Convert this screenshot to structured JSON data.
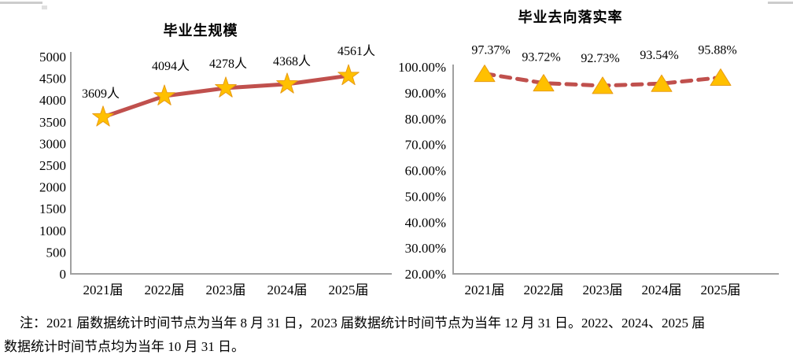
{
  "page": {
    "background": "#ffffff",
    "text_color": "#000000"
  },
  "footnote": {
    "lines": [
      "注：2021 届数据统计时间节点为当年 8 月 31 日，2023 届数据统计时间节点为当年 12 月 31 日。2022、2024、2025 届",
      "数据统计时间节点均为当年 10 月 31 日。"
    ]
  },
  "chart_data": [
    {
      "type": "line",
      "title": "毕业生规模",
      "categories": [
        "2021届",
        "2022届",
        "2023届",
        "2024届",
        "2025届"
      ],
      "values": [
        3609,
        4094,
        4278,
        4368,
        4561
      ],
      "data_labels": [
        "3609人",
        "4094人",
        "4278人",
        "4368人",
        "4561人"
      ],
      "xlabel": "",
      "ylabel": "",
      "ylim": [
        0,
        5000
      ],
      "ytick_step": 500,
      "ytick_labels": [
        "0",
        "500",
        "1000",
        "1500",
        "2000",
        "2500",
        "3000",
        "3500",
        "4000",
        "4500",
        "5000"
      ],
      "grid": false,
      "legend": "none",
      "line_style": "solid",
      "marker": "star",
      "colors": {
        "line": "#C0504D",
        "marker_fill": "#FFC000",
        "marker_stroke": "#E89B17",
        "axis": "#A0A0A0",
        "text": "#000000"
      }
    },
    {
      "type": "line",
      "title": "毕业去向落实率",
      "categories": [
        "2021届",
        "2022届",
        "2023届",
        "2024届",
        "2025届"
      ],
      "values": [
        97.37,
        93.72,
        92.73,
        93.54,
        95.88
      ],
      "data_labels": [
        "97.37%",
        "93.72%",
        "92.73%",
        "93.54%",
        "95.88%"
      ],
      "xlabel": "",
      "ylabel": "",
      "ylim": [
        20,
        100
      ],
      "ytick_step": 10,
      "ytick_labels": [
        "20.00%",
        "30.00%",
        "40.00%",
        "50.00%",
        "60.00%",
        "70.00%",
        "80.00%",
        "90.00%",
        "100.00%"
      ],
      "grid": false,
      "legend": "none",
      "line_style": "dashed",
      "marker": "triangle",
      "colors": {
        "line": "#C0504D",
        "marker_fill": "#FFC000",
        "marker_stroke": "#E89B17",
        "axis": "#A0A0A0",
        "text": "#000000"
      }
    }
  ]
}
